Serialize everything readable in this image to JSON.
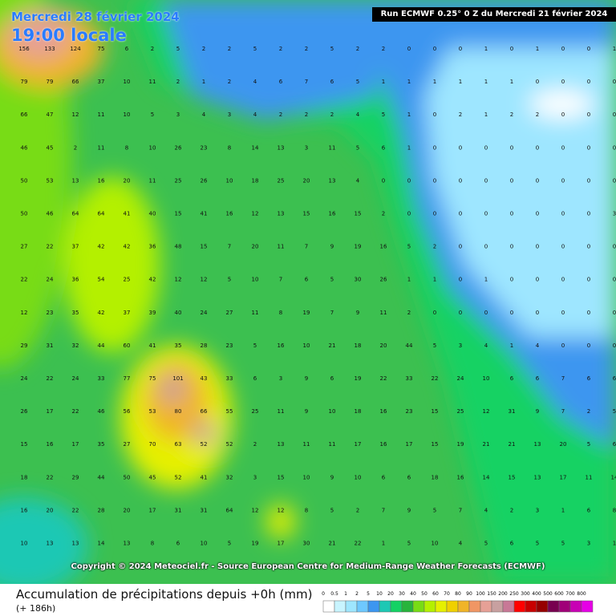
{
  "header": {
    "date": "Mercredi 28 février 2024",
    "hour": "19:00 locale",
    "run": "Run ECMWF 0.25° 0 Z du Mercredi 21 février 2024"
  },
  "copyright": "Copyright © 2024 Meteociel.fr - Source European Centre for Medium-Range Weather Forecasts (ECMWF)",
  "legend": {
    "title": "Accumulation de précipitations depuis +0h (mm)",
    "subtitle": "(+ 186h)",
    "scale": [
      0,
      0.5,
      1,
      2,
      5,
      10,
      20,
      30,
      40,
      50,
      60,
      70,
      80,
      90,
      100,
      150,
      200,
      250,
      300,
      400,
      500,
      600,
      700,
      800
    ],
    "colors": [
      "#ffffff",
      "#c8f4ff",
      "#9ee6ff",
      "#6ec8ff",
      "#3c96f0",
      "#1ec8b4",
      "#14d264",
      "#28b43c",
      "#78dc14",
      "#b4f000",
      "#e6f000",
      "#f0d000",
      "#f0b428",
      "#f09664",
      "#e6a096",
      "#c8a0a0",
      "#c87896",
      "#ff0000",
      "#c80000",
      "#960000",
      "#780050",
      "#a00078",
      "#c800b4",
      "#e600e6"
    ]
  },
  "grid": [
    [
      156,
      133,
      124,
      75,
      6,
      2,
      5,
      2,
      2,
      5,
      2,
      2,
      5,
      2,
      2,
      0,
      0,
      0,
      1,
      0,
      1,
      0,
      0,
      1
    ],
    [
      79,
      79,
      66,
      37,
      10,
      11,
      2,
      1,
      2,
      4,
      6,
      7,
      6,
      5,
      1,
      1,
      1,
      1,
      1,
      1,
      0,
      0,
      0,
      0
    ],
    [
      66,
      47,
      12,
      11,
      10,
      5,
      3,
      4,
      3,
      4,
      2,
      2,
      2,
      4,
      5,
      1,
      0,
      2,
      1,
      2,
      2,
      0,
      0,
      0
    ],
    [
      46,
      45,
      2,
      11,
      8,
      10,
      26,
      23,
      8,
      14,
      13,
      3,
      11,
      5,
      6,
      1,
      0,
      0,
      0,
      0,
      0,
      0,
      0,
      0
    ],
    [
      50,
      53,
      13,
      16,
      20,
      11,
      25,
      26,
      10,
      18,
      25,
      20,
      13,
      4,
      0,
      0,
      0,
      0,
      0,
      0,
      0,
      0,
      0,
      0
    ],
    [
      50,
      46,
      64,
      64,
      41,
      40,
      15,
      41,
      16,
      12,
      13,
      15,
      16,
      15,
      2,
      0,
      0,
      0,
      0,
      0,
      0,
      0,
      0,
      3
    ],
    [
      27,
      22,
      37,
      42,
      42,
      36,
      48,
      15,
      7,
      20,
      11,
      7,
      9,
      19,
      16,
      5,
      2,
      0,
      0,
      0,
      0,
      0,
      0,
      0
    ],
    [
      22,
      24,
      36,
      54,
      25,
      42,
      12,
      12,
      5,
      10,
      7,
      6,
      5,
      30,
      26,
      1,
      1,
      0,
      1,
      0,
      0,
      0,
      0,
      0
    ],
    [
      12,
      23,
      35,
      42,
      37,
      39,
      40,
      24,
      27,
      11,
      8,
      19,
      7,
      9,
      11,
      2,
      0,
      0,
      0,
      0,
      0,
      0,
      0,
      0
    ],
    [
      29,
      31,
      32,
      44,
      60,
      41,
      35,
      28,
      23,
      5,
      16,
      10,
      21,
      18,
      20,
      44,
      5,
      3,
      4,
      1,
      4,
      0,
      0,
      0
    ],
    [
      24,
      22,
      24,
      33,
      77,
      75,
      101,
      43,
      33,
      6,
      3,
      9,
      6,
      19,
      22,
      33,
      22,
      24,
      10,
      6,
      6,
      7,
      6,
      6
    ],
    [
      26,
      17,
      22,
      46,
      56,
      53,
      80,
      66,
      55,
      25,
      11,
      9,
      10,
      18,
      16,
      23,
      15,
      25,
      12,
      31,
      9,
      7,
      2,
      5
    ],
    [
      15,
      16,
      17,
      35,
      27,
      70,
      63,
      52,
      52,
      2,
      13,
      11,
      11,
      17,
      16,
      17,
      15,
      19,
      21,
      21,
      13,
      20,
      5,
      6
    ],
    [
      18,
      22,
      29,
      44,
      50,
      45,
      52,
      41,
      32,
      3,
      15,
      10,
      9,
      10,
      6,
      6,
      18,
      16,
      14,
      15,
      13,
      17,
      11,
      14
    ],
    [
      16,
      20,
      22,
      28,
      20,
      17,
      31,
      31,
      64,
      12,
      12,
      8,
      5,
      2,
      7,
      9,
      5,
      7,
      4,
      2,
      3,
      1,
      6,
      8
    ],
    [
      10,
      13,
      13,
      14,
      13,
      8,
      6,
      10,
      5,
      19,
      17,
      30,
      21,
      22,
      1,
      5,
      10,
      4,
      5,
      6,
      5,
      5,
      3,
      1
    ]
  ]
}
